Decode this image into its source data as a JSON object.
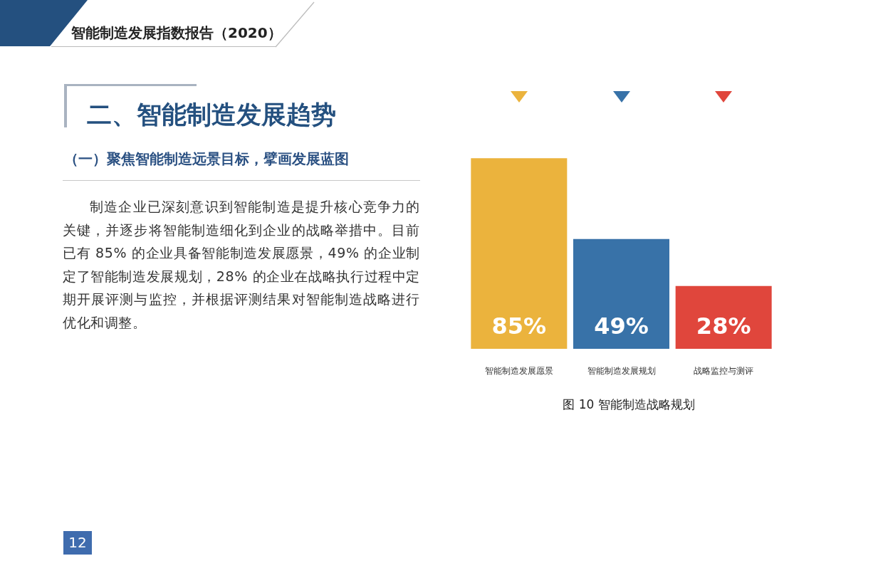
{
  "chart_data": {
    "type": "bar",
    "title": "图 10 智能制造战略规划",
    "categories": [
      "智能制造发展愿景",
      "智能制造发展规划",
      "战略监控与测评"
    ],
    "values": [
      85,
      49,
      28
    ],
    "colors": [
      "#ebb33d",
      "#3872a8",
      "#e0463c"
    ],
    "value_labels": [
      "85%",
      "49%",
      "28%"
    ],
    "tick_labels": "x",
    "annotations": [
      "智能制造发展指数报告（2020）",
      "二、智能制造发展趋势",
      "（一）聚焦智能制造远景目标，擘画发展蓝图",
      "制造企业已深刻意识到智能制造是提升核心竞争力的关键，并逐步将智能制造细化到企业的战略举措中。目前已有 85% 的企业具备智能制造发展愿景，49% 的企业制定了智能制造发展规划，28% 的企业在战略执行过程中定期开展评测与监控，并根据评测结果对智能制造战略进行优化和调整。",
      "12"
    ]
  }
}
